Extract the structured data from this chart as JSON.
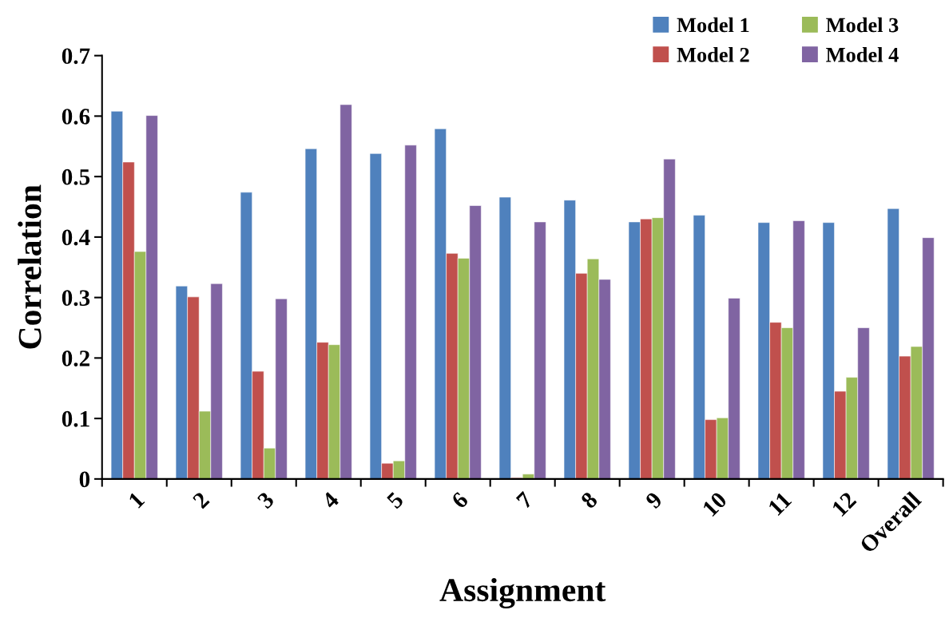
{
  "chart_data": {
    "type": "bar",
    "xlabel": "Assignment",
    "ylabel": "Correlation",
    "categories": [
      "1",
      "2",
      "3",
      "4",
      "5",
      "6",
      "7",
      "8",
      "9",
      "10",
      "11",
      "12",
      "Overall"
    ],
    "series": [
      {
        "name": "Model 1",
        "color": "#4f81bd",
        "values": [
          0.608,
          0.319,
          0.474,
          0.546,
          0.538,
          0.579,
          0.466,
          0.461,
          0.425,
          0.436,
          0.424,
          0.424,
          0.447
        ]
      },
      {
        "name": "Model 2",
        "color": "#c0504d",
        "values": [
          0.524,
          0.301,
          0.178,
          0.226,
          0.026,
          0.373,
          0.002,
          0.34,
          0.43,
          0.098,
          0.259,
          0.145,
          0.203
        ]
      },
      {
        "name": "Model 3",
        "color": "#9bbb59",
        "values": [
          0.376,
          0.112,
          0.051,
          0.222,
          0.03,
          0.365,
          0.008,
          0.364,
          0.432,
          0.101,
          0.25,
          0.168,
          0.219
        ]
      },
      {
        "name": "Model 4",
        "color": "#8064a2",
        "values": [
          0.601,
          0.323,
          0.298,
          0.619,
          0.552,
          0.452,
          0.425,
          0.33,
          0.529,
          0.299,
          0.427,
          0.25,
          0.399
        ]
      }
    ],
    "ylim": [
      0,
      0.7
    ],
    "yticks": [
      0,
      0.1,
      0.2,
      0.3,
      0.4,
      0.5,
      0.6,
      0.7
    ],
    "grid": false,
    "legend": "top right"
  }
}
